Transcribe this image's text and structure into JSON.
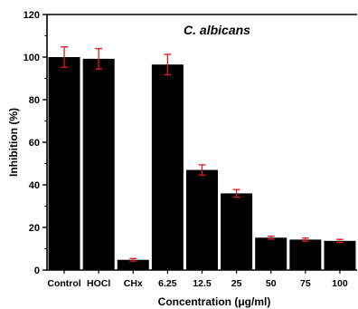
{
  "chart_data": {
    "type": "bar",
    "title": "C. albicans",
    "xlabel": "Concentration (μg/ml)",
    "ylabel": "Inhibition (%)",
    "categories": [
      "Control",
      "HOCl",
      "CHx",
      "6.25",
      "12.5",
      "25",
      "50",
      "75",
      "100"
    ],
    "values": [
      100,
      99.2,
      4.8,
      96.5,
      47,
      36,
      15.2,
      14.3,
      13.7
    ],
    "errors": [
      4.8,
      4.8,
      0.6,
      4.8,
      2.4,
      1.8,
      0.7,
      0.7,
      0.7
    ],
    "ylim": [
      0,
      120
    ],
    "yticks": [
      0,
      20,
      40,
      60,
      80,
      100,
      120
    ],
    "bar_color": "#000000",
    "error_color": "#e0191e",
    "grid": false,
    "legend": "none"
  }
}
